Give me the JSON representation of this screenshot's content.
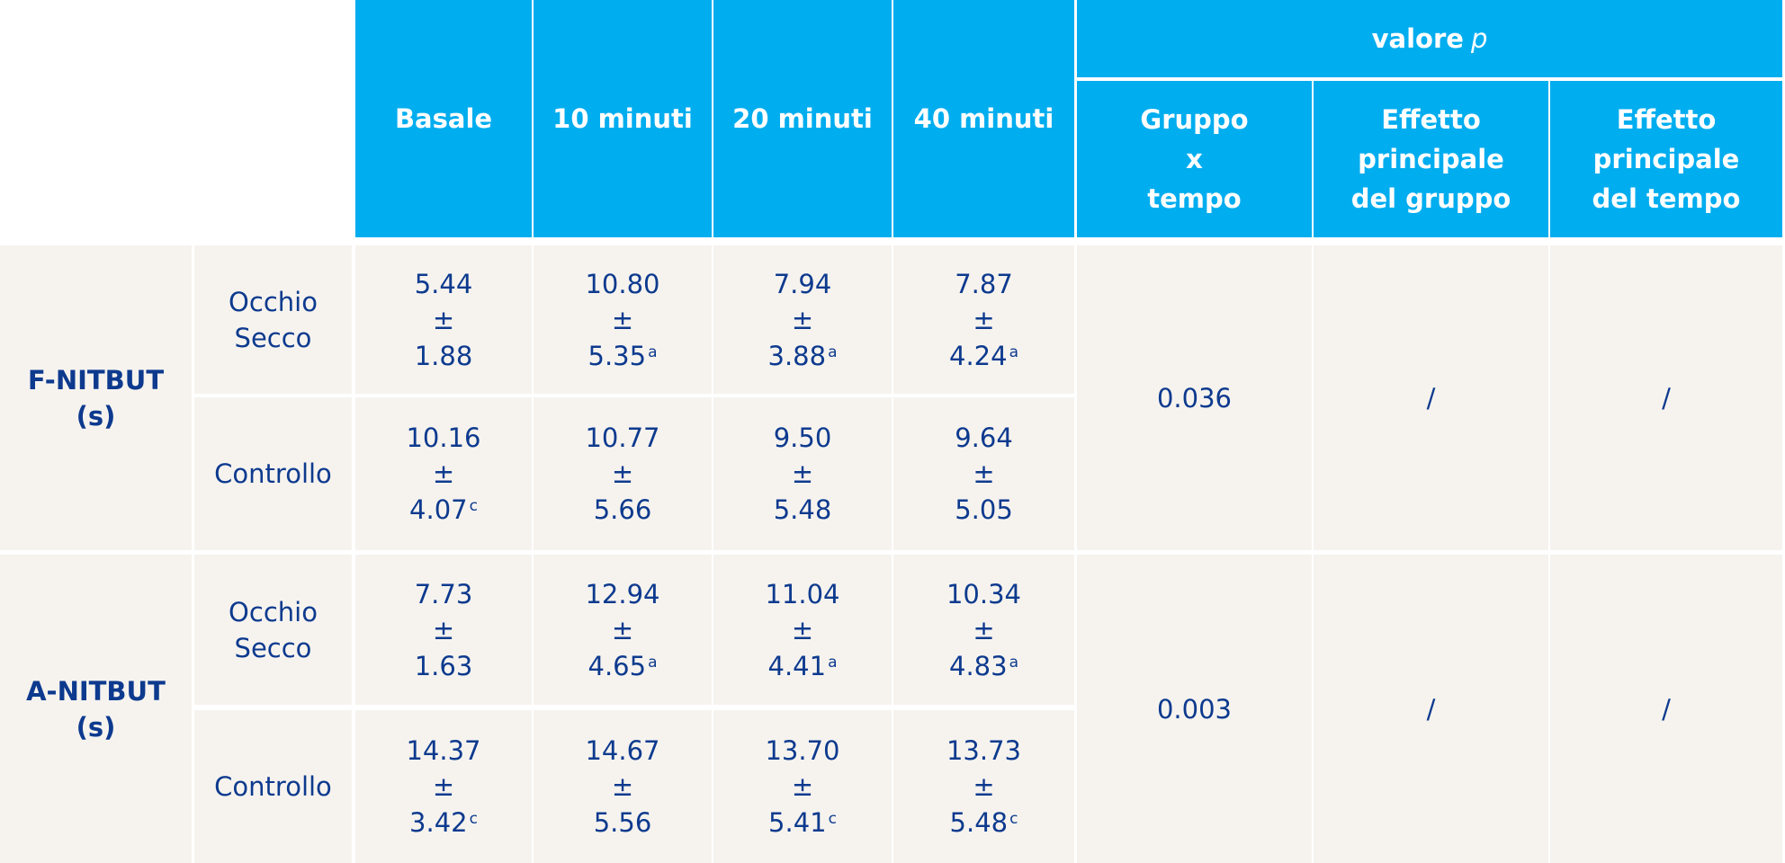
{
  "header": {
    "valore": "valore",
    "p": "p",
    "columns": [
      "Basale",
      "10 minuti",
      "20 minuti",
      "40 minuti"
    ],
    "p_columns": [
      "Gruppo\nx\ntempo",
      "Effetto\nprincipale\ndel gruppo",
      "Effetto\nprincipale\ndel tempo"
    ]
  },
  "groups": [
    {
      "label": "F-NITBUT\n(s)",
      "p_values": [
        "0.036",
        "/",
        "/"
      ],
      "rows": [
        {
          "label": "Occhio\nSecco",
          "cells": [
            {
              "mean": "5.44",
              "pm": "±",
              "sd": "1.88"
            },
            {
              "mean": "10.80",
              "pm": "±",
              "sd": "5.35",
              "sup": "a"
            },
            {
              "mean": "7.94",
              "pm": "±",
              "sd": "3.88",
              "sup": "a"
            },
            {
              "mean": "7.87",
              "pm": "±",
              "sd": "4.24",
              "sup": "a"
            }
          ]
        },
        {
          "label": "Controllo",
          "cells": [
            {
              "mean": "10.16",
              "pm": "±",
              "sd": "4.07",
              "sup": "c"
            },
            {
              "mean": "10.77",
              "pm": "±",
              "sd": "5.66"
            },
            {
              "mean": "9.50",
              "pm": "±",
              "sd": "5.48"
            },
            {
              "mean": "9.64",
              "pm": "±",
              "sd": "5.05"
            }
          ]
        }
      ]
    },
    {
      "label": "A-NITBUT\n(s)",
      "p_values": [
        "0.003",
        "/",
        "/"
      ],
      "rows": [
        {
          "label": "Occhio\nSecco",
          "cells": [
            {
              "mean": "7.73",
              "pm": "±",
              "sd": "1.63"
            },
            {
              "mean": "12.94",
              "pm": "±",
              "sd": "4.65",
              "sup": "a"
            },
            {
              "mean": "11.04",
              "pm": "±",
              "sd": "4.41",
              "sup": "a"
            },
            {
              "mean": "10.34",
              "pm": "±",
              "sd": "4.83",
              "sup": "a"
            }
          ]
        },
        {
          "label": "Controllo",
          "cells": [
            {
              "mean": "14.37",
              "pm": "±",
              "sd": "3.42",
              "sup": "c"
            },
            {
              "mean": "14.67",
              "pm": "±",
              "sd": "5.56"
            },
            {
              "mean": "13.70",
              "pm": "±",
              "sd": "5.41",
              "sup": "c"
            },
            {
              "mean": "13.73",
              "pm": "±",
              "sd": "5.48",
              "sup": "c"
            }
          ]
        }
      ]
    }
  ]
}
